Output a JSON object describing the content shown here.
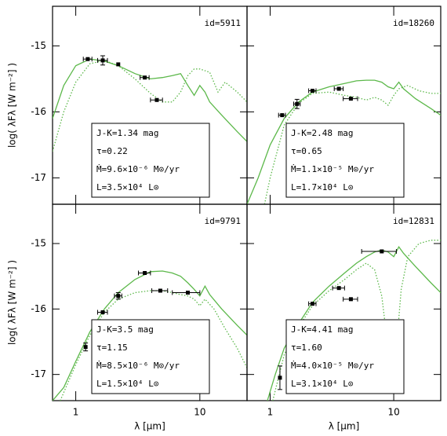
{
  "chart_data": [
    {
      "type": "sed",
      "title": "id=5911",
      "log_x": true,
      "xlim": [
        0.65,
        24
      ],
      "ylim": [
        -17.4,
        -14.4
      ],
      "xticks": [
        1,
        10
      ],
      "yticks": [
        -17,
        -16,
        -15
      ],
      "ylabel": "log( λFλ [W m⁻²] )",
      "annotations": [
        "J-K=1.34 mag",
        "τ=0.22",
        "Ṁ=9.6×10⁻⁶ M⊙/yr",
        "L=3.5×10⁴ L⊙"
      ],
      "points": {
        "x": [
          1.25,
          1.65,
          2.2,
          3.6,
          4.5
        ],
        "y": [
          -15.2,
          -15.22,
          -15.28,
          -15.48,
          -15.82
        ],
        "xerr": [
          0.1,
          0.15,
          null,
          0.3,
          0.5
        ],
        "yerr": [
          null,
          0.07,
          null,
          null,
          null
        ]
      },
      "curves": [
        {
          "style": "solid",
          "color": "#5cb84a",
          "x": [
            0.65,
            0.8,
            1,
            1.3,
            1.7,
            2.2,
            3,
            4,
            5,
            6,
            7,
            8,
            9,
            10,
            11,
            12,
            15,
            20,
            24
          ],
          "y": [
            -16.1,
            -15.6,
            -15.3,
            -15.2,
            -15.23,
            -15.3,
            -15.42,
            -15.5,
            -15.48,
            -15.45,
            -15.42,
            -15.6,
            -15.75,
            -15.6,
            -15.7,
            -15.85,
            -16.05,
            -16.3,
            -16.45
          ]
        },
        {
          "style": "dotted",
          "color": "#5cb84a",
          "x": [
            0.65,
            0.8,
            1,
            1.3,
            1.7,
            2.2,
            3,
            4,
            5,
            6,
            7,
            8,
            9,
            10,
            12,
            14,
            16,
            20,
            24
          ],
          "y": [
            -16.6,
            -16.0,
            -15.55,
            -15.27,
            -15.22,
            -15.3,
            -15.5,
            -15.72,
            -15.85,
            -15.85,
            -15.7,
            -15.45,
            -15.35,
            -15.35,
            -15.4,
            -15.7,
            -15.55,
            -15.7,
            -15.85
          ]
        }
      ]
    },
    {
      "type": "sed",
      "title": "id=18260",
      "log_x": true,
      "xlim": [
        0.65,
        24
      ],
      "ylim": [
        -17.4,
        -14.4
      ],
      "xticks": [
        1,
        10
      ],
      "yticks": [
        -17,
        -16,
        -15
      ],
      "annotations": [
        "J-K=2.48 mag",
        "τ=0.65",
        "Ṁ=1.1×10⁻⁵ M⊙/yr",
        "L=1.7×10⁴ L⊙"
      ],
      "points": {
        "x": [
          1.25,
          1.65,
          2.2,
          3.6,
          4.5
        ],
        "y": [
          -16.05,
          -15.88,
          -15.68,
          -15.65,
          -15.8
        ],
        "xerr": [
          0.08,
          0.1,
          0.15,
          0.3,
          0.6
        ],
        "yerr": [
          null,
          0.07,
          null,
          null,
          null
        ]
      },
      "curves": [
        {
          "style": "solid",
          "color": "#5cb84a",
          "x": [
            0.65,
            0.8,
            1,
            1.3,
            1.7,
            2.2,
            3,
            4,
            5,
            6,
            7,
            8,
            9,
            10,
            11,
            12,
            15,
            20,
            24
          ],
          "y": [
            -17.4,
            -17.0,
            -16.5,
            -16.1,
            -15.85,
            -15.7,
            -15.62,
            -15.57,
            -15.53,
            -15.52,
            -15.52,
            -15.55,
            -15.62,
            -15.65,
            -15.55,
            -15.65,
            -15.8,
            -15.95,
            -16.05
          ]
        },
        {
          "style": "dotted",
          "color": "#5cb84a",
          "x": [
            0.9,
            1,
            1.3,
            1.7,
            2.2,
            3,
            4,
            5,
            6,
            7,
            8,
            9,
            10,
            11,
            13,
            16,
            20,
            24
          ],
          "y": [
            -17.4,
            -17.0,
            -16.2,
            -15.87,
            -15.72,
            -15.7,
            -15.75,
            -15.78,
            -15.82,
            -15.78,
            -15.82,
            -15.9,
            -15.75,
            -15.65,
            -15.6,
            -15.68,
            -15.72,
            -15.72
          ]
        }
      ]
    },
    {
      "type": "sed",
      "title": "id=9791",
      "log_x": true,
      "xlim": [
        0.65,
        24
      ],
      "ylim": [
        -17.4,
        -14.4
      ],
      "xticks": [
        1,
        10
      ],
      "yticks": [
        -17,
        -16,
        -15
      ],
      "ylabel": "log( λFλ [W m⁻²] )",
      "xlabel": "λ [μm]",
      "annotations": [
        "J-K=3.5 mag",
        "τ=1.15",
        "Ṁ=8.5×10⁻⁶ M⊙/yr",
        "L=1.5×10⁴ L⊙"
      ],
      "points": {
        "x": [
          1.2,
          1.65,
          2.2,
          3.6,
          4.8,
          8
        ],
        "y": [
          -16.58,
          -16.05,
          -15.8,
          -15.45,
          -15.72,
          -15.75
        ],
        "xerr": [
          null,
          0.15,
          0.15,
          0.4,
          0.7,
          2
        ],
        "yerr": [
          0.06,
          null,
          0.05,
          null,
          null,
          null
        ]
      },
      "curves": [
        {
          "style": "solid",
          "color": "#5cb84a",
          "x": [
            0.65,
            0.8,
            1,
            1.3,
            1.7,
            2.2,
            3,
            4,
            5,
            6,
            7,
            8,
            9,
            10,
            11,
            12,
            15,
            20,
            24
          ],
          "y": [
            -17.4,
            -17.2,
            -16.8,
            -16.35,
            -16.0,
            -15.75,
            -15.55,
            -15.43,
            -15.42,
            -15.45,
            -15.5,
            -15.6,
            -15.7,
            -15.8,
            -15.65,
            -15.78,
            -16.0,
            -16.25,
            -16.4
          ]
        },
        {
          "style": "dotted",
          "color": "#5cb84a",
          "x": [
            0.75,
            1,
            1.3,
            1.7,
            2.2,
            3,
            4,
            5,
            6,
            7,
            8,
            9,
            10,
            11,
            13,
            16,
            20,
            24
          ],
          "y": [
            -17.4,
            -16.85,
            -16.4,
            -16.05,
            -15.85,
            -15.75,
            -15.72,
            -15.72,
            -15.75,
            -15.78,
            -15.8,
            -15.85,
            -15.95,
            -15.85,
            -16.0,
            -16.3,
            -16.6,
            -16.9
          ]
        }
      ]
    },
    {
      "type": "sed",
      "title": "id=12831",
      "log_x": true,
      "xlim": [
        0.65,
        24
      ],
      "ylim": [
        -17.4,
        -14.4
      ],
      "xticks": [
        1,
        10
      ],
      "yticks": [
        -17,
        -16,
        -15
      ],
      "xlabel": "λ [μm]",
      "annotations": [
        "J-K=4.41 mag",
        "τ=1.60",
        "Ṁ=4.0×10⁻⁵ M⊙/yr",
        "L=3.1×10⁴ L⊙"
      ],
      "points": {
        "x": [
          1.2,
          1.6,
          2.2,
          3.6,
          4.5,
          8
        ],
        "y": [
          -17.05,
          -16.35,
          -15.92,
          -15.68,
          -15.85,
          -15.12
        ],
        "xerr": [
          null,
          0.1,
          0.15,
          0.4,
          0.6,
          2.5
        ],
        "yerr": [
          0.18,
          null,
          null,
          null,
          null,
          null
        ]
      },
      "curves": [
        {
          "style": "solid",
          "color": "#5cb84a",
          "x": [
            0.95,
            1.1,
            1.3,
            1.6,
            2.2,
            3,
            4,
            5,
            6,
            7,
            8,
            9,
            10,
            11,
            12,
            15,
            20,
            24
          ],
          "y": [
            -17.4,
            -17.0,
            -16.6,
            -16.3,
            -15.9,
            -15.65,
            -15.45,
            -15.3,
            -15.2,
            -15.13,
            -15.1,
            -15.13,
            -15.2,
            -15.05,
            -15.15,
            -15.35,
            -15.6,
            -15.75
          ]
        },
        {
          "style": "dotted",
          "color": "#5cb84a",
          "x": [
            1.05,
            1.3,
            1.6,
            2.2,
            3,
            4,
            5,
            6,
            7,
            8,
            9,
            9.7,
            10.5,
            11.5,
            13,
            16,
            20,
            24
          ],
          "y": [
            -17.4,
            -16.7,
            -16.35,
            -15.95,
            -15.72,
            -15.55,
            -15.4,
            -15.3,
            -15.4,
            -15.8,
            -16.6,
            -17.0,
            -16.6,
            -15.7,
            -15.2,
            -15.0,
            -14.95,
            -14.95
          ]
        }
      ]
    }
  ]
}
